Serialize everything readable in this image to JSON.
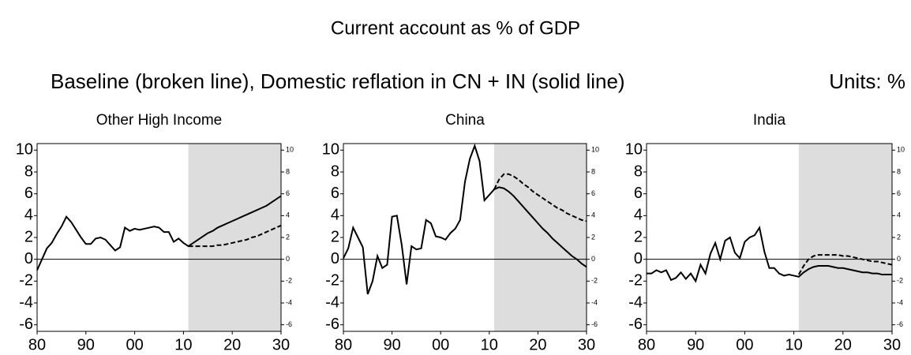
{
  "title": "Current account as % of GDP",
  "subtitle": "Baseline (broken line), Domestic reflation in CN + IN (solid line)",
  "units": "Units: %",
  "chart_data": [
    {
      "type": "line",
      "title": "Other High Income",
      "x": [
        1980,
        1981,
        1982,
        1983,
        1984,
        1985,
        1986,
        1987,
        1988,
        1989,
        1990,
        1991,
        1992,
        1993,
        1994,
        1995,
        1996,
        1997,
        1998,
        1999,
        2000,
        2001,
        2002,
        2003,
        2004,
        2005,
        2006,
        2007,
        2008,
        2009,
        2010,
        2011,
        2012,
        2013,
        2014,
        2015,
        2016,
        2017,
        2018,
        2019,
        2020,
        2021,
        2022,
        2023,
        2024,
        2025,
        2026,
        2027,
        2028,
        2029,
        2030
      ],
      "series": [
        {
          "color": "#000000",
          "dashed": false,
          "values": [
            -1.0,
            0.0,
            1.0,
            1.5,
            2.3,
            3.0,
            3.9,
            3.4,
            2.7,
            2.0,
            1.4,
            1.4,
            1.9,
            2.0,
            1.8,
            1.3,
            0.8,
            1.1,
            2.9,
            2.6,
            2.8,
            2.7,
            2.8,
            2.9,
            3.0,
            2.9,
            2.5,
            2.5,
            1.6,
            1.9,
            1.5,
            1.2,
            1.5,
            1.8,
            2.1,
            2.4,
            2.6,
            2.9,
            3.1,
            3.3,
            3.5,
            3.7,
            3.9,
            4.1,
            4.3,
            4.5,
            4.7,
            4.9,
            5.2,
            5.5,
            5.8
          ]
        },
        {
          "color": "#000000",
          "dashed": true,
          "values": [
            null,
            null,
            null,
            null,
            null,
            null,
            null,
            null,
            null,
            null,
            null,
            null,
            null,
            null,
            null,
            null,
            null,
            null,
            null,
            null,
            null,
            null,
            null,
            null,
            null,
            null,
            null,
            null,
            null,
            null,
            null,
            1.2,
            1.2,
            1.2,
            1.2,
            1.2,
            1.2,
            1.3,
            1.3,
            1.4,
            1.5,
            1.6,
            1.7,
            1.8,
            2.0,
            2.1,
            2.3,
            2.5,
            2.7,
            2.9,
            3.1
          ]
        }
      ],
      "xlim": [
        1980,
        2030
      ],
      "xticks": [
        {
          "value": 1980,
          "label": "80"
        },
        {
          "value": 1990,
          "label": "90"
        },
        {
          "value": 2000,
          "label": "00"
        },
        {
          "value": 2010,
          "label": "10"
        },
        {
          "value": 2020,
          "label": "20"
        },
        {
          "value": 2030,
          "label": "30"
        }
      ],
      "ylim": [
        -6.6,
        10.6
      ],
      "yticks": [
        -6,
        -4,
        -2,
        0,
        2,
        4,
        6,
        8,
        10
      ],
      "y2lim": [
        -6.6,
        10.6
      ],
      "y2ticks": [
        -6,
        -4,
        -2,
        0,
        2,
        4,
        6,
        8,
        10
      ],
      "shade_from": 2011,
      "shade_color": "#dddddd"
    },
    {
      "type": "line",
      "title": "China",
      "x": [
        1980,
        1981,
        1982,
        1983,
        1984,
        1985,
        1986,
        1987,
        1988,
        1989,
        1990,
        1991,
        1992,
        1993,
        1994,
        1995,
        1996,
        1997,
        1998,
        1999,
        2000,
        2001,
        2002,
        2003,
        2004,
        2005,
        2006,
        2007,
        2008,
        2009,
        2010,
        2011,
        2012,
        2013,
        2014,
        2015,
        2016,
        2017,
        2018,
        2019,
        2020,
        2021,
        2022,
        2023,
        2024,
        2025,
        2026,
        2027,
        2028,
        2029,
        2030
      ],
      "series": [
        {
          "color": "#000000",
          "dashed": false,
          "values": [
            0.1,
            1.0,
            2.9,
            2.0,
            1.1,
            -3.2,
            -2.0,
            0.3,
            -0.8,
            -0.5,
            3.9,
            4.0,
            1.3,
            -2.3,
            1.2,
            0.9,
            1.0,
            3.6,
            3.3,
            2.1,
            2.0,
            1.8,
            2.4,
            2.8,
            3.6,
            7.1,
            9.2,
            10.4,
            9.0,
            5.4,
            5.9,
            6.4,
            6.6,
            6.5,
            6.2,
            5.8,
            5.3,
            4.8,
            4.3,
            3.8,
            3.3,
            2.8,
            2.4,
            1.9,
            1.5,
            1.1,
            0.7,
            0.3,
            0.0,
            -0.4,
            -0.7
          ]
        },
        {
          "color": "#000000",
          "dashed": true,
          "values": [
            null,
            null,
            null,
            null,
            null,
            null,
            null,
            null,
            null,
            null,
            null,
            null,
            null,
            null,
            null,
            null,
            null,
            null,
            null,
            null,
            null,
            null,
            null,
            null,
            null,
            null,
            null,
            null,
            null,
            null,
            null,
            6.4,
            7.3,
            7.8,
            7.8,
            7.6,
            7.3,
            6.9,
            6.6,
            6.2,
            5.9,
            5.6,
            5.3,
            5.0,
            4.7,
            4.5,
            4.2,
            4.0,
            3.8,
            3.6,
            3.5
          ]
        }
      ],
      "xlim": [
        1980,
        2030
      ],
      "xticks": [
        {
          "value": 1980,
          "label": "80"
        },
        {
          "value": 1990,
          "label": "90"
        },
        {
          "value": 2000,
          "label": "00"
        },
        {
          "value": 2010,
          "label": "10"
        },
        {
          "value": 2020,
          "label": "20"
        },
        {
          "value": 2030,
          "label": "30"
        }
      ],
      "ylim": [
        -6.6,
        10.6
      ],
      "yticks": [
        -6,
        -4,
        -2,
        0,
        2,
        4,
        6,
        8,
        10
      ],
      "y2lim": [
        -6.6,
        10.6
      ],
      "y2ticks": [
        -6,
        -4,
        -2,
        0,
        2,
        4,
        6,
        8,
        10
      ],
      "shade_from": 2011,
      "shade_color": "#dddddd"
    },
    {
      "type": "line",
      "title": "India",
      "x": [
        1980,
        1981,
        1982,
        1983,
        1984,
        1985,
        1986,
        1987,
        1988,
        1989,
        1990,
        1991,
        1992,
        1993,
        1994,
        1995,
        1996,
        1997,
        1998,
        1999,
        2000,
        2001,
        2002,
        2003,
        2004,
        2005,
        2006,
        2007,
        2008,
        2009,
        2010,
        2011,
        2012,
        2013,
        2014,
        2015,
        2016,
        2017,
        2018,
        2019,
        2020,
        2021,
        2022,
        2023,
        2024,
        2025,
        2026,
        2027,
        2028,
        2029,
        2030
      ],
      "series": [
        {
          "color": "#000000",
          "dashed": false,
          "values": [
            -1.3,
            -1.3,
            -1.0,
            -1.2,
            -1.0,
            -1.9,
            -1.7,
            -1.2,
            -1.8,
            -1.3,
            -2.0,
            -0.5,
            -1.3,
            0.5,
            1.5,
            0.0,
            1.7,
            2.0,
            0.6,
            0.1,
            1.6,
            2.0,
            2.2,
            2.9,
            0.7,
            -0.8,
            -0.8,
            -1.3,
            -1.5,
            -1.4,
            -1.5,
            -1.6,
            -1.2,
            -0.9,
            -0.7,
            -0.6,
            -0.6,
            -0.6,
            -0.7,
            -0.8,
            -0.8,
            -0.9,
            -1.0,
            -1.1,
            -1.2,
            -1.2,
            -1.3,
            -1.3,
            -1.4,
            -1.4,
            -1.4
          ]
        },
        {
          "color": "#000000",
          "dashed": true,
          "values": [
            null,
            null,
            null,
            null,
            null,
            null,
            null,
            null,
            null,
            null,
            null,
            null,
            null,
            null,
            null,
            null,
            null,
            null,
            null,
            null,
            null,
            null,
            null,
            null,
            null,
            null,
            null,
            null,
            null,
            null,
            null,
            -1.4,
            -0.6,
            0.0,
            0.3,
            0.4,
            0.4,
            0.4,
            0.4,
            0.4,
            0.3,
            0.3,
            0.2,
            0.1,
            0.0,
            -0.1,
            -0.2,
            -0.2,
            -0.3,
            -0.4,
            -0.5
          ]
        }
      ],
      "xlim": [
        1980,
        2030
      ],
      "xticks": [
        {
          "value": 1980,
          "label": "80"
        },
        {
          "value": 1990,
          "label": "90"
        },
        {
          "value": 2000,
          "label": "00"
        },
        {
          "value": 2010,
          "label": "10"
        },
        {
          "value": 2020,
          "label": "20"
        },
        {
          "value": 2030,
          "label": "30"
        }
      ],
      "ylim": [
        -6.6,
        10.6
      ],
      "yticks": [
        -6,
        -4,
        -2,
        0,
        2,
        4,
        6,
        8,
        10
      ],
      "y2lim": [
        -6.6,
        10.6
      ],
      "y2ticks": [
        -6,
        -4,
        -2,
        0,
        2,
        4,
        6,
        8,
        10
      ],
      "shade_from": 2011,
      "shade_color": "#dddddd"
    }
  ]
}
